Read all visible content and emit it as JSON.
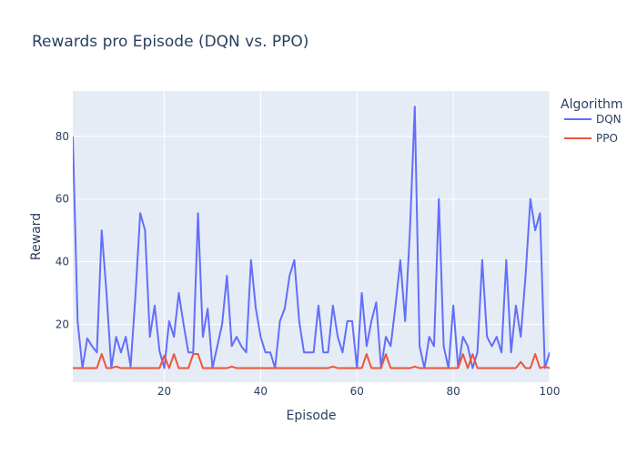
{
  "chart_data": {
    "type": "line",
    "title": "Rewards pro Episode (DQN vs. PPO)",
    "xlabel": "Episode",
    "ylabel": "Reward",
    "xlim": [
      1,
      100
    ],
    "ylim": [
      1.5,
      94.5
    ],
    "xticks": [
      20,
      40,
      60,
      80,
      100
    ],
    "yticks": [
      20,
      40,
      60,
      80
    ],
    "grid": true,
    "legend_title": "Algorithm",
    "legend_position": "top-right",
    "series": [
      {
        "name": "DQN",
        "color": "#636efa",
        "x": [
          1,
          2,
          3,
          4,
          5,
          6,
          7,
          8,
          9,
          10,
          11,
          12,
          13,
          14,
          15,
          16,
          17,
          18,
          19,
          20,
          21,
          22,
          23,
          24,
          25,
          26,
          27,
          28,
          29,
          30,
          31,
          32,
          33,
          34,
          35,
          36,
          37,
          38,
          39,
          40,
          41,
          42,
          43,
          44,
          45,
          46,
          47,
          48,
          49,
          50,
          51,
          52,
          53,
          54,
          55,
          56,
          57,
          58,
          59,
          60,
          61,
          62,
          63,
          64,
          65,
          66,
          67,
          68,
          69,
          70,
          71,
          72,
          73,
          74,
          75,
          76,
          77,
          78,
          79,
          80,
          81,
          82,
          83,
          84,
          85,
          86,
          87,
          88,
          89,
          90,
          91,
          92,
          93,
          94,
          95,
          96,
          97,
          98,
          99,
          100
        ],
        "values": [
          80,
          21,
          6,
          15.5,
          13,
          11,
          50,
          30,
          6,
          16,
          11,
          16,
          6.5,
          29,
          55.5,
          50,
          16,
          26,
          11.5,
          6,
          21,
          16,
          30,
          20,
          11,
          11,
          55.5,
          16,
          25,
          6,
          13,
          20,
          35.5,
          13,
          16,
          13,
          11,
          40.5,
          25,
          16,
          11,
          11,
          6,
          21,
          25,
          35.5,
          40.5,
          21,
          11,
          11,
          11,
          26,
          11,
          11,
          26,
          16,
          11,
          21,
          21,
          6,
          30,
          13,
          21,
          27,
          6,
          16,
          13,
          26,
          40.5,
          21,
          50,
          89.5,
          13,
          6,
          16,
          13,
          60,
          13,
          6,
          26,
          6,
          16,
          13,
          6,
          11,
          40.5,
          16,
          13,
          16,
          11,
          40.5,
          11,
          26,
          16,
          35.5,
          60,
          50,
          55.5,
          6,
          11
        ]
      },
      {
        "name": "PPO",
        "color": "#ef553b",
        "x": [
          1,
          2,
          3,
          4,
          5,
          6,
          7,
          8,
          9,
          10,
          11,
          12,
          13,
          14,
          15,
          16,
          17,
          18,
          19,
          20,
          21,
          22,
          23,
          24,
          25,
          26,
          27,
          28,
          29,
          30,
          31,
          32,
          33,
          34,
          35,
          36,
          37,
          38,
          39,
          40,
          41,
          42,
          43,
          44,
          45,
          46,
          47,
          48,
          49,
          50,
          51,
          52,
          53,
          54,
          55,
          56,
          57,
          58,
          59,
          60,
          61,
          62,
          63,
          64,
          65,
          66,
          67,
          68,
          69,
          70,
          71,
          72,
          73,
          74,
          75,
          76,
          77,
          78,
          79,
          80,
          81,
          82,
          83,
          84,
          85,
          86,
          87,
          88,
          89,
          90,
          91,
          92,
          93,
          94,
          95,
          96,
          97,
          98,
          99,
          100
        ],
        "values": [
          6,
          6,
          6,
          6,
          6,
          6,
          10.5,
          6,
          6,
          6.5,
          6,
          6,
          6,
          6,
          6,
          6,
          6,
          6,
          6,
          10,
          6,
          10.5,
          6,
          6,
          6,
          10.5,
          10.5,
          6,
          6,
          6,
          6,
          6,
          6,
          6.5,
          6,
          6,
          6,
          6,
          6,
          6,
          6,
          6,
          6,
          6,
          6,
          6,
          6,
          6,
          6,
          6,
          6,
          6,
          6,
          6,
          6.5,
          6,
          6,
          6,
          6,
          6,
          6,
          10.5,
          6,
          6,
          6,
          10.5,
          6,
          6,
          6,
          6,
          6,
          6.5,
          6,
          6,
          6,
          6,
          6,
          6,
          6,
          6,
          6,
          10.5,
          6,
          10.5,
          6,
          6,
          6,
          6,
          6,
          6,
          6,
          6,
          6,
          8,
          6,
          6,
          10.5,
          6,
          6.5,
          6
        ]
      }
    ]
  }
}
